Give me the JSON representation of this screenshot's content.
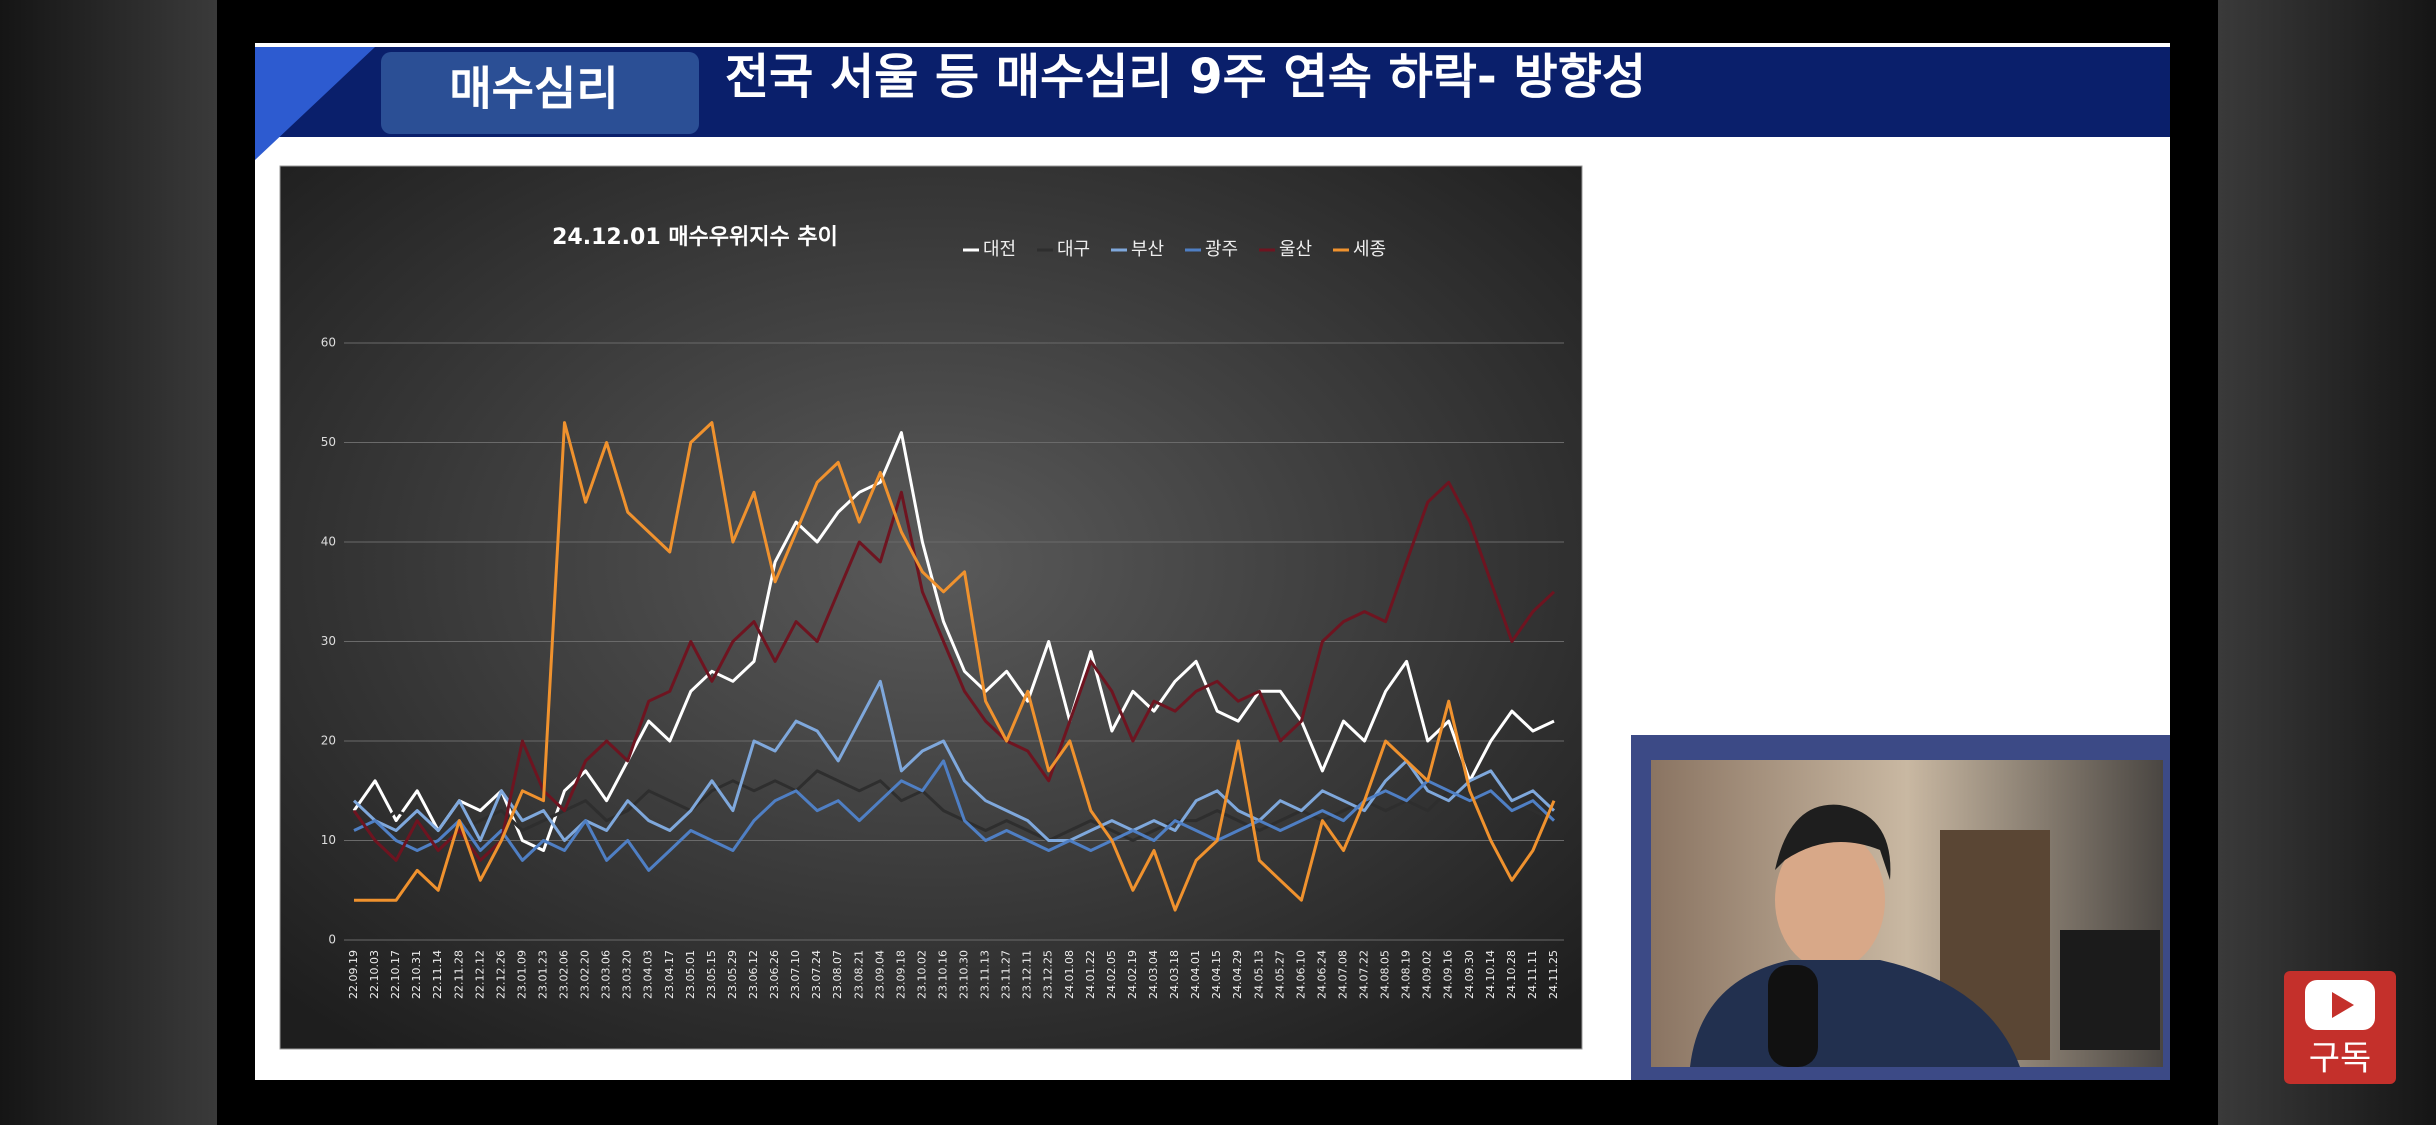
{
  "header": {
    "tab": "매수심리",
    "title": "전국  서울 등  매수심리 9주 연속  하락- 방향성"
  },
  "subscribe": "구독",
  "chart_data": {
    "type": "line",
    "title": "24.12.01    매수우위지수 추이",
    "categories": [
      "22.09.19",
      "22.10.03",
      "22.10.17",
      "22.10.31",
      "22.11.14",
      "22.11.28",
      "22.12.12",
      "22.12.26",
      "23.01.09",
      "23.01.23",
      "23.02.06",
      "23.02.20",
      "23.03.06",
      "23.03.20",
      "23.04.03",
      "23.04.17",
      "23.05.01",
      "23.05.15",
      "23.05.29",
      "23.06.12",
      "23.06.26",
      "23.07.10",
      "23.07.24",
      "23.08.07",
      "23.08.21",
      "23.09.04",
      "23.09.18",
      "23.10.02",
      "23.10.16",
      "23.10.30",
      "23.11.13",
      "23.11.27",
      "23.12.11",
      "23.12.25",
      "24.01.08",
      "24.01.22",
      "24.02.05",
      "24.02.19",
      "24.03.04",
      "24.03.18",
      "24.04.01",
      "24.04.15",
      "24.04.29",
      "24.05.13",
      "24.05.27",
      "24.06.10",
      "24.06.24",
      "24.07.08",
      "24.07.22",
      "24.08.05",
      "24.08.19",
      "24.09.02",
      "24.09.16",
      "24.09.30",
      "24.10.14",
      "24.10.28",
      "24.11.11",
      "24.11.25"
    ],
    "series": [
      {
        "name": "대전",
        "color": "#ffffff",
        "values": [
          13,
          16,
          12,
          15,
          11,
          14,
          13,
          15,
          10,
          9,
          15,
          17,
          14,
          18,
          22,
          20,
          25,
          27,
          26,
          28,
          38,
          42,
          40,
          43,
          45,
          46,
          51,
          40,
          32,
          27,
          25,
          27,
          24,
          30,
          22,
          29,
          21,
          25,
          23,
          26,
          28,
          23,
          22,
          25,
          25,
          22,
          17,
          22,
          20,
          25,
          28,
          20,
          22,
          16,
          20,
          23,
          21,
          22
        ]
      },
      {
        "name": "대구",
        "color": "#2e2e2e",
        "values": [
          12,
          11,
          13,
          12,
          10,
          11,
          12,
          13,
          11,
          12,
          13,
          14,
          12,
          13,
          15,
          14,
          13,
          15,
          16,
          15,
          16,
          15,
          17,
          16,
          15,
          16,
          14,
          15,
          13,
          12,
          11,
          12,
          11,
          10,
          11,
          12,
          11,
          10,
          11,
          12,
          12,
          13,
          12,
          11,
          12,
          13,
          12,
          13,
          14,
          13,
          14,
          13,
          15,
          14,
          13,
          14,
          13,
          12
        ]
      },
      {
        "name": "부산",
        "color": "#7fa8dc",
        "values": [
          14,
          12,
          11,
          13,
          11,
          14,
          10,
          15,
          12,
          13,
          10,
          12,
          11,
          14,
          12,
          11,
          13,
          16,
          13,
          20,
          19,
          22,
          21,
          18,
          22,
          26,
          17,
          19,
          20,
          16,
          14,
          13,
          12,
          10,
          10,
          11,
          12,
          11,
          12,
          11,
          14,
          15,
          13,
          12,
          14,
          13,
          15,
          14,
          13,
          16,
          18,
          15,
          14,
          16,
          17,
          14,
          15,
          13
        ]
      },
      {
        "name": "광주",
        "color": "#4f7fc4",
        "values": [
          11,
          12,
          10,
          9,
          10,
          12,
          9,
          11,
          8,
          10,
          9,
          12,
          8,
          10,
          7,
          9,
          11,
          10,
          9,
          12,
          14,
          15,
          13,
          14,
          12,
          14,
          16,
          15,
          18,
          12,
          10,
          11,
          10,
          9,
          10,
          9,
          10,
          11,
          10,
          12,
          11,
          10,
          11,
          12,
          11,
          12,
          13,
          12,
          14,
          15,
          14,
          16,
          15,
          14,
          15,
          13,
          14,
          12
        ]
      },
      {
        "name": "울산",
        "color": "#6e1420",
        "values": [
          13,
          10,
          8,
          12,
          9,
          11,
          8,
          10,
          20,
          15,
          13,
          18,
          20,
          18,
          24,
          25,
          30,
          26,
          30,
          32,
          28,
          32,
          30,
          35,
          40,
          38,
          45,
          35,
          30,
          25,
          22,
          20,
          19,
          16,
          22,
          28,
          25,
          20,
          24,
          23,
          25,
          26,
          24,
          25,
          20,
          22,
          30,
          32,
          33,
          32,
          38,
          44,
          46,
          42,
          36,
          30,
          33,
          35
        ]
      },
      {
        "name": "세종",
        "color": "#f0922e",
        "values": [
          4,
          4,
          4,
          7,
          5,
          12,
          6,
          10,
          15,
          14,
          52,
          44,
          50,
          43,
          41,
          39,
          50,
          52,
          40,
          45,
          36,
          41,
          46,
          48,
          42,
          47,
          41,
          37,
          35,
          37,
          24,
          20,
          25,
          17,
          20,
          13,
          10,
          5,
          9,
          3,
          8,
          10,
          20,
          8,
          6,
          4,
          12,
          9,
          14,
          20,
          18,
          16,
          24,
          15,
          10,
          6,
          9,
          14
        ]
      }
    ],
    "ylim": [
      0,
      60
    ],
    "yticks": [
      0,
      10,
      20,
      30,
      40,
      50,
      60
    ],
    "grid": true
  }
}
